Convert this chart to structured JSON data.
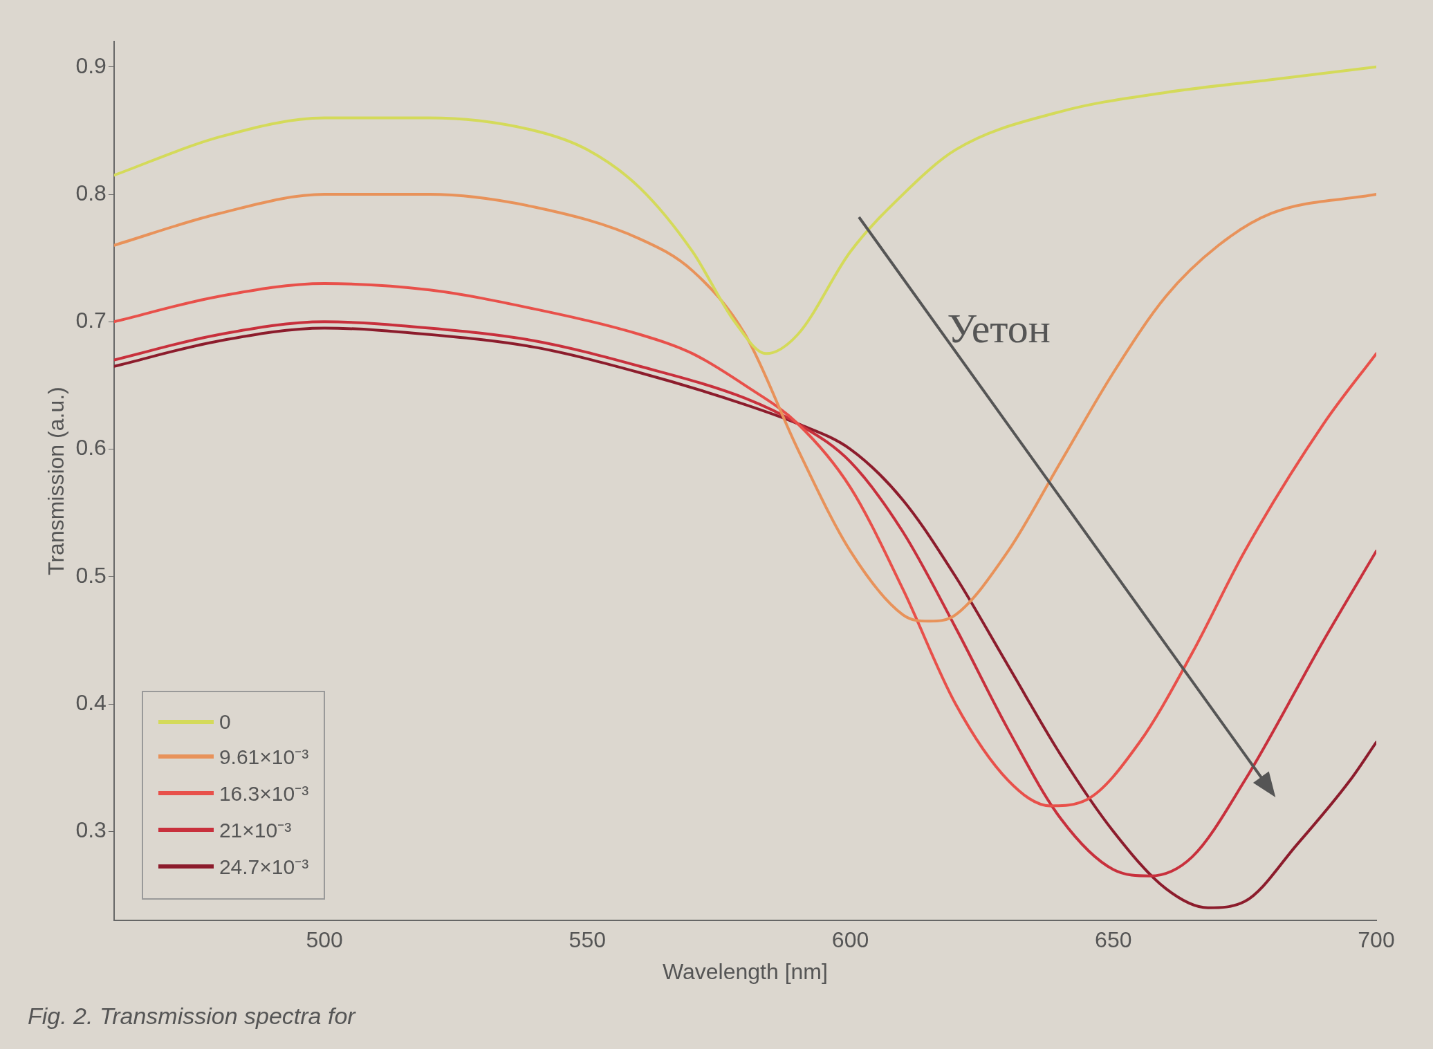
{
  "chart_data": {
    "type": "line",
    "xlabel": "Wavelength [nm]",
    "ylabel": "Transmission (a.u.)",
    "xlim": [
      460,
      700
    ],
    "xticks": [
      500,
      550,
      600,
      650,
      700
    ],
    "ylim": [
      0.23,
      0.92
    ],
    "yticks": [
      0.3,
      0.4,
      0.5,
      0.6,
      0.7,
      0.8,
      0.9
    ],
    "grid": false,
    "legend": "bottom left",
    "marker": "none",
    "line_style": "solid",
    "annotations": [
      "Уетон",
      "Fig. 2. Transmission spectra for"
    ],
    "series": [
      {
        "name": "0",
        "color": "#d4da5a",
        "x": [
          460,
          480,
          500,
          520,
          540,
          550,
          560,
          570,
          578,
          584,
          590,
          600,
          610,
          620,
          640,
          660,
          680,
          700
        ],
        "values": [
          0.815,
          0.845,
          0.86,
          0.86,
          0.85,
          0.835,
          0.805,
          0.755,
          0.7,
          0.675,
          0.69,
          0.755,
          0.8,
          0.835,
          0.865,
          0.88,
          0.89,
          0.9
        ]
      },
      {
        "name": "9.61×10⁻³",
        "color": "#e8925a",
        "x": [
          460,
          480,
          500,
          520,
          540,
          560,
          570,
          580,
          590,
          600,
          610,
          615,
          620,
          630,
          640,
          650,
          660,
          670,
          680,
          700
        ],
        "values": [
          0.76,
          0.785,
          0.8,
          0.8,
          0.79,
          0.765,
          0.74,
          0.69,
          0.6,
          0.52,
          0.47,
          0.465,
          0.47,
          0.52,
          0.59,
          0.66,
          0.72,
          0.76,
          0.785,
          0.8
        ]
      },
      {
        "name": "16.3×10⁻³",
        "color": "#e8504a",
        "x": [
          460,
          480,
          500,
          520,
          540,
          560,
          570,
          580,
          590,
          600,
          610,
          620,
          630,
          638,
          645,
          655,
          665,
          675,
          690,
          700
        ],
        "values": [
          0.7,
          0.72,
          0.73,
          0.725,
          0.71,
          0.69,
          0.675,
          0.65,
          0.62,
          0.57,
          0.49,
          0.4,
          0.34,
          0.32,
          0.325,
          0.37,
          0.44,
          0.52,
          0.62,
          0.675
        ]
      },
      {
        "name": "21×10⁻³",
        "color": "#c8303c",
        "x": [
          460,
          480,
          500,
          520,
          540,
          560,
          580,
          590,
          600,
          610,
          620,
          630,
          640,
          650,
          657,
          665,
          675,
          690,
          700
        ],
        "values": [
          0.67,
          0.69,
          0.7,
          0.695,
          0.685,
          0.665,
          0.64,
          0.62,
          0.59,
          0.535,
          0.46,
          0.38,
          0.31,
          0.27,
          0.265,
          0.28,
          0.34,
          0.45,
          0.52
        ]
      },
      {
        "name": "24.7×10⁻³",
        "color": "#8c1c2c",
        "x": [
          460,
          480,
          500,
          520,
          540,
          560,
          580,
          590,
          600,
          610,
          620,
          630,
          640,
          650,
          660,
          668,
          675,
          685,
          695,
          700
        ],
        "values": [
          0.665,
          0.685,
          0.695,
          0.69,
          0.68,
          0.66,
          0.635,
          0.62,
          0.6,
          0.56,
          0.5,
          0.43,
          0.36,
          0.3,
          0.255,
          0.24,
          0.245,
          0.29,
          0.34,
          0.37
        ]
      }
    ]
  }
}
